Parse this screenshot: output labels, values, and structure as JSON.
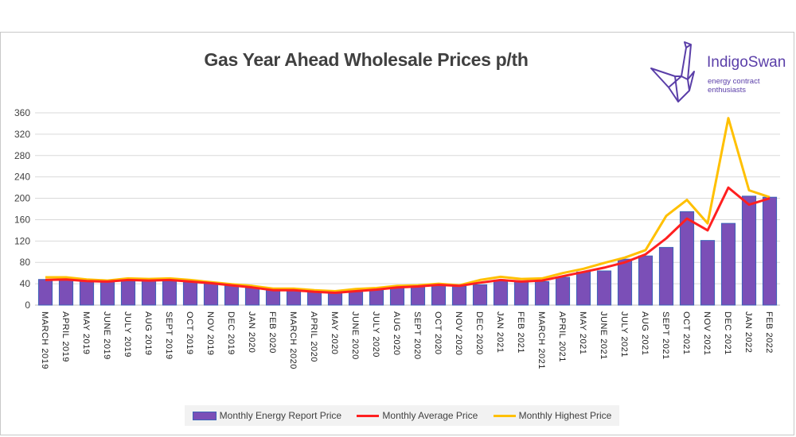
{
  "chart_data": {
    "type": "bar",
    "title": "Gas Year Ahead Wholesale Prices p/th",
    "categories": [
      "MARCH 2019",
      "APRIL 2019",
      "MAY 2019",
      "JUNE 2019",
      "JULY 2019",
      "AUG 2019",
      "SEPT 2019",
      "OCT 2019",
      "NOV 2019",
      "DEC 2019",
      "JAN 2020",
      "FEB 2020",
      "MARCH 2020",
      "APRIL 2020",
      "MAY 2020",
      "JUNE 2020",
      "JULY 2020",
      "AUG 2020",
      "SEPT 2020",
      "OCT 2020",
      "NOV 2020",
      "DEC 2020",
      "JAN 2021",
      "FEB 2021",
      "MARCH 2021",
      "APRIL 2021",
      "MAY 2021",
      "JUNE 2021",
      "JULY 2021",
      "AUG 2021",
      "SEPT 2021",
      "OCT 2021",
      "NOV 2021",
      "DEC 2021",
      "JAN 2022",
      "FEB 2022"
    ],
    "series": [
      {
        "name": "Monthly Energy Report Price",
        "kind": "bar",
        "color": "#7b4fb7",
        "values": [
          48,
          47,
          45,
          44,
          45,
          45,
          45,
          43,
          40,
          36,
          32,
          28,
          27,
          25,
          23,
          26,
          28,
          32,
          35,
          36,
          35,
          38,
          47,
          44,
          44,
          52,
          62,
          64,
          86,
          92,
          108,
          175,
          121,
          153,
          204,
          202
        ]
      },
      {
        "name": "Monthly Average Price",
        "kind": "line",
        "color": "#ff2020",
        "values": [
          47,
          48,
          45,
          44,
          47,
          46,
          47,
          44,
          41,
          37,
          33,
          28,
          28,
          25,
          23,
          26,
          29,
          33,
          35,
          38,
          36,
          42,
          47,
          44,
          46,
          54,
          62,
          70,
          80,
          95,
          125,
          162,
          140,
          220,
          188,
          200
        ]
      },
      {
        "name": "Monthly Highest Price",
        "kind": "line",
        "color": "#ffc000",
        "values": [
          52,
          52,
          48,
          46,
          50,
          49,
          50,
          47,
          43,
          39,
          36,
          31,
          31,
          28,
          26,
          30,
          32,
          36,
          37,
          40,
          37,
          47,
          53,
          49,
          50,
          60,
          68,
          79,
          89,
          103,
          167,
          197,
          153,
          350,
          215,
          202
        ]
      }
    ],
    "ylim": [
      0,
      360
    ],
    "yticks": [
      0,
      40,
      80,
      120,
      160,
      200,
      240,
      280,
      320,
      360
    ],
    "grid": true,
    "legend_position": "bottom"
  },
  "brand": {
    "name": "IndigoSwan",
    "tagline": "energy contract enthusiasts",
    "color": "#5a3ea8",
    "logo_icon": "origami-swan-icon"
  }
}
